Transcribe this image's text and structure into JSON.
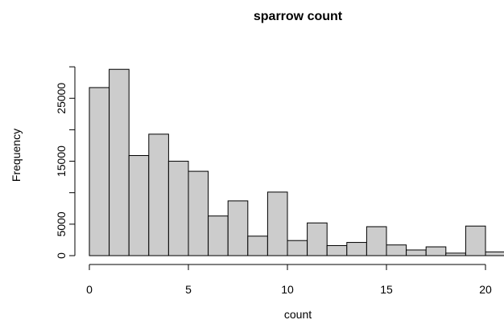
{
  "colors": {
    "bar_fill": "#cccccc",
    "bar_stroke": "#000000"
  },
  "chart_data": {
    "type": "bar",
    "title": "sparrow count",
    "xlabel": "count",
    "ylabel": "Frequency",
    "bin_width": 1,
    "xlim": [
      0,
      20.8
    ],
    "ylim": [
      0,
      30000
    ],
    "x_ticks": [
      0,
      5,
      10,
      15,
      20
    ],
    "y_ticks": [
      0,
      5000,
      15000,
      25000
    ],
    "grid": false,
    "bins": [
      {
        "start": 0,
        "end": 1,
        "value": 26700
      },
      {
        "start": 1,
        "end": 2,
        "value": 29600
      },
      {
        "start": 2,
        "end": 3,
        "value": 15900
      },
      {
        "start": 3,
        "end": 4,
        "value": 19300
      },
      {
        "start": 4,
        "end": 5,
        "value": 15000
      },
      {
        "start": 5,
        "end": 6,
        "value": 13400
      },
      {
        "start": 6,
        "end": 7,
        "value": 6300
      },
      {
        "start": 7,
        "end": 8,
        "value": 8700
      },
      {
        "start": 8,
        "end": 9,
        "value": 3100
      },
      {
        "start": 9,
        "end": 10,
        "value": 10100
      },
      {
        "start": 10,
        "end": 11,
        "value": 2400
      },
      {
        "start": 11,
        "end": 12,
        "value": 5200
      },
      {
        "start": 12,
        "end": 13,
        "value": 1600
      },
      {
        "start": 13,
        "end": 14,
        "value": 2100
      },
      {
        "start": 14,
        "end": 15,
        "value": 4600
      },
      {
        "start": 15,
        "end": 16,
        "value": 1700
      },
      {
        "start": 16,
        "end": 17,
        "value": 900
      },
      {
        "start": 17,
        "end": 18,
        "value": 1400
      },
      {
        "start": 18,
        "end": 19,
        "value": 400
      },
      {
        "start": 19,
        "end": 20,
        "value": 4700
      },
      {
        "start": 20,
        "end": 21,
        "value": 600
      }
    ]
  }
}
